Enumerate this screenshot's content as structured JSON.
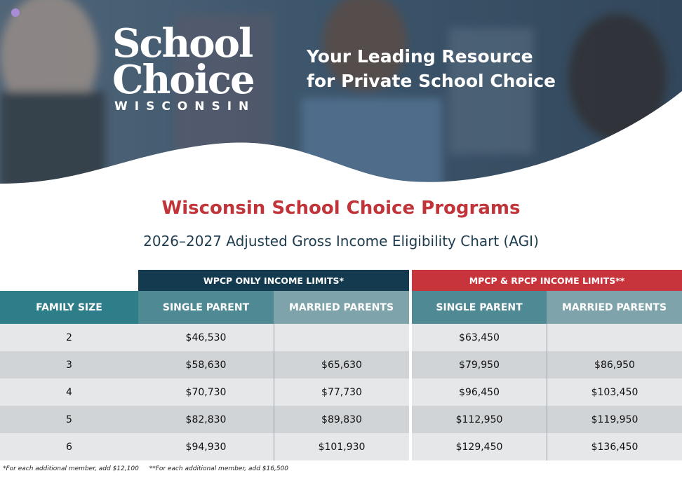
{
  "header": {
    "logo": [
      "School",
      "Choice",
      "WISCONSIN"
    ],
    "tagline": [
      "Your Leading Resource",
      "for Private School Choice"
    ]
  },
  "title": "Wisconsin School Choice Programs",
  "subtitle": "2026–2027 Adjusted Gross Income Eligibility Chart (AGI)",
  "table": {
    "groups": [
      "WPCP ONLY INCOME LIMITS*",
      "MPCP & RPCP INCOME LIMITS**"
    ],
    "columns": [
      "FAMILY SIZE",
      "SINGLE PARENT",
      "MARRIED PARENTS",
      "SINGLE PARENT",
      "MARRIED PARENTS"
    ],
    "rows": [
      [
        "2",
        "$46,530",
        null,
        "$63,450",
        null
      ],
      [
        "3",
        "$58,630",
        "$65,630",
        "$79,950",
        "$86,950"
      ],
      [
        "4",
        "$70,730",
        "$77,730",
        "$96,450",
        "$103,450"
      ],
      [
        "5",
        "$82,830",
        "$89,830",
        "$112,950",
        "$119,950"
      ],
      [
        "6",
        "$94,930",
        "$101,930",
        "$129,450",
        "$136,450"
      ]
    ]
  },
  "footnotes": [
    "*For each additional member, add $12,100",
    "**For each additional member, add $16,500"
  ]
}
